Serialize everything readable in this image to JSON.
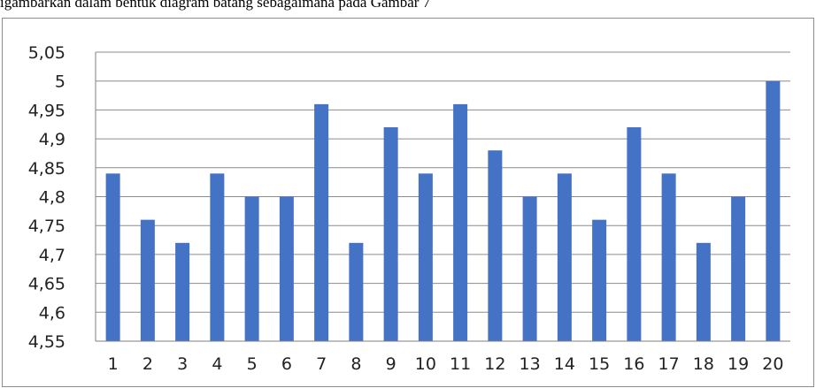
{
  "caption": "igambarkan dalam bentuk diagram batang sebagaimana pada Gambar 7",
  "colors": {
    "bar": "#4472C4",
    "grid": "#8c8c8c",
    "axis": "#7f7f7f"
  },
  "chart_data": {
    "type": "bar",
    "title": "",
    "xlabel": "",
    "ylabel": "",
    "categories": [
      "1",
      "2",
      "3",
      "4",
      "5",
      "6",
      "7",
      "8",
      "9",
      "10",
      "11",
      "12",
      "13",
      "14",
      "15",
      "16",
      "17",
      "18",
      "19",
      "20"
    ],
    "values": [
      4.84,
      4.76,
      4.72,
      4.84,
      4.8,
      4.8,
      4.96,
      4.72,
      4.92,
      4.84,
      4.96,
      4.88,
      4.8,
      4.84,
      4.76,
      4.92,
      4.84,
      4.72,
      4.8,
      5.0
    ],
    "ylim": [
      4.55,
      5.05
    ],
    "yticks": [
      "5,05",
      "5",
      "4,95",
      "4,9",
      "4,85",
      "4,8",
      "4,75",
      "4,7",
      "4,65",
      "4,6",
      "4,55"
    ],
    "ytick_values": [
      5.05,
      5.0,
      4.95,
      4.9,
      4.85,
      4.8,
      4.75,
      4.7,
      4.65,
      4.6,
      4.55
    ],
    "grid": true,
    "legend": "none"
  }
}
